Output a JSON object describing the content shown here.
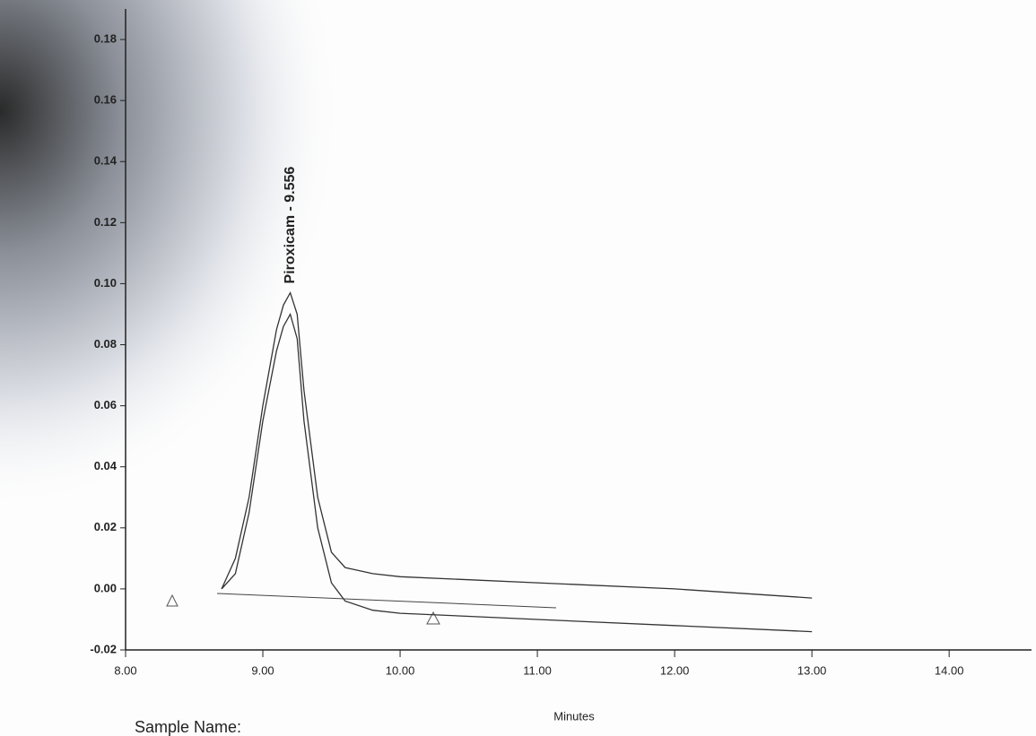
{
  "chart_data": {
    "type": "line",
    "annotation": "Piroxicam - 9.556",
    "x_label": "Minutes",
    "footer": "Sample Name:",
    "x": [
      8.7,
      8.8,
      8.9,
      9.0,
      9.1,
      9.15,
      9.2,
      9.25,
      9.3,
      9.4,
      9.5,
      9.6,
      9.8,
      10.0,
      10.5,
      11.0,
      12.0,
      13.0
    ],
    "series": [
      {
        "color": "#333333",
        "values": [
          0,
          0.01,
          0.03,
          0.06,
          0.085,
          0.093,
          0.097,
          0.09,
          0.065,
          0.03,
          0.012,
          0.007,
          0.005,
          0.004,
          0.003,
          0.002,
          0.0,
          -0.003
        ]
      },
      {
        "color": "#333333",
        "values": [
          0,
          0.005,
          0.025,
          0.055,
          0.078,
          0.086,
          0.09,
          0.082,
          0.055,
          0.02,
          0.002,
          -0.004,
          -0.007,
          -0.008,
          -0.009,
          -0.01,
          -0.012,
          -0.014
        ]
      }
    ],
    "xlim": [
      8.0,
      14.6
    ],
    "xticks": [
      {
        "value": 8,
        "label": "8.00"
      },
      {
        "value": 9,
        "label": "9.00"
      },
      {
        "value": 10,
        "label": "10.00"
      },
      {
        "value": 11,
        "label": "11.00"
      },
      {
        "value": 12,
        "label": "12.00"
      },
      {
        "value": 13,
        "label": "13.00"
      },
      {
        "value": 14,
        "label": "14.00"
      }
    ],
    "ylim": [
      -0.02,
      0.19
    ],
    "yticks": [
      {
        "value": -0.02,
        "label": "-0.02"
      },
      {
        "value": 0,
        "label": "0.00"
      },
      {
        "value": 0.02,
        "label": "0.02"
      },
      {
        "value": 0.04,
        "label": "0.04"
      },
      {
        "value": 0.06,
        "label": "0.06"
      },
      {
        "value": 0.08,
        "label": "0.08"
      },
      {
        "value": 0.1,
        "label": "0.10"
      },
      {
        "value": 0.12,
        "label": "0.12"
      },
      {
        "value": 0.14,
        "label": "0.14"
      },
      {
        "value": 0.16,
        "label": "0.16"
      },
      {
        "value": 0.18,
        "label": "0.18"
      }
    ]
  }
}
